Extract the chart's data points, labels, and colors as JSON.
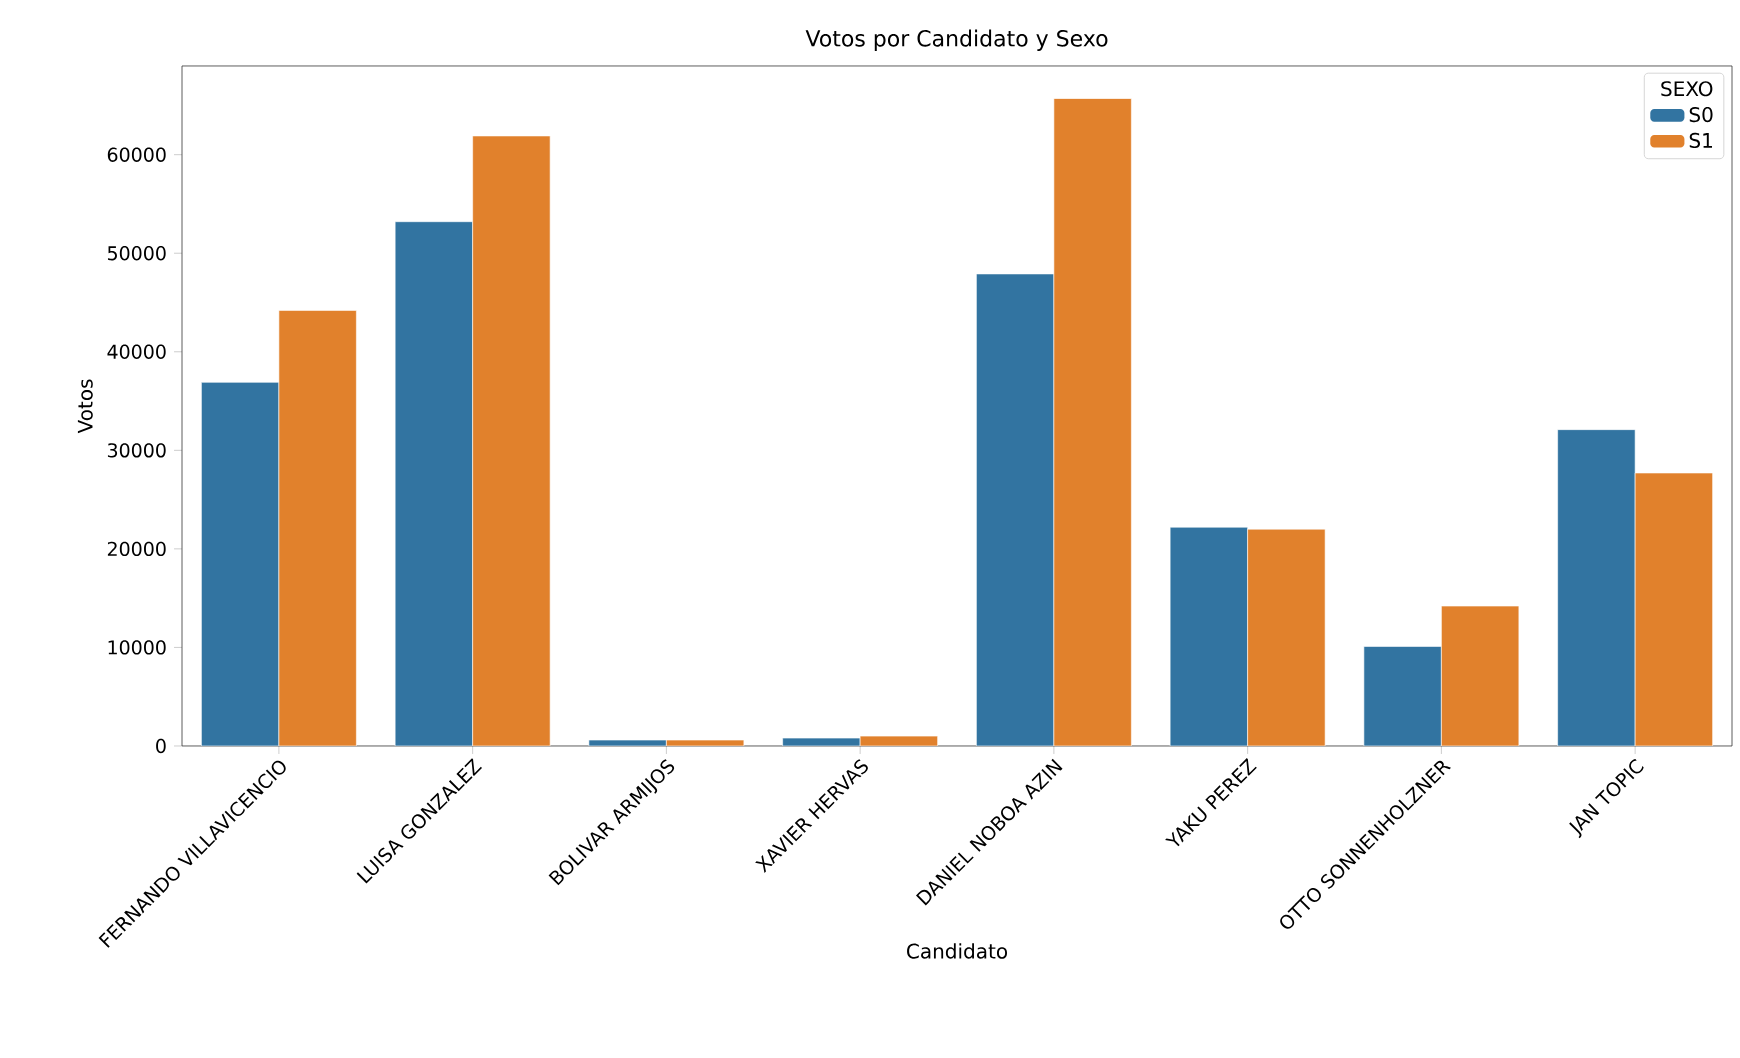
{
  "chart_data": {
    "type": "bar",
    "title": "Votos por Candidato y Sexo",
    "xlabel": "Candidato",
    "ylabel": "Votos",
    "legend_title": "SEXO",
    "categories": [
      "FERNANDO VILLAVICENCIO",
      "LUISA GONZALEZ",
      "BOLIVAR ARMIJOS",
      "XAVIER HERVAS",
      "DANIEL NOBOA AZIN",
      "YAKU PEREZ",
      "OTTO SONNENHOLZNER",
      "JAN TOPIC"
    ],
    "series": [
      {
        "name": "S0",
        "color": "#3274a1",
        "values": [
          36900,
          53200,
          600,
          800,
          47900,
          22200,
          10100,
          32100
        ]
      },
      {
        "name": "S1",
        "color": "#e1812c",
        "values": [
          44200,
          61900,
          600,
          1000,
          65700,
          22000,
          14200,
          27700
        ]
      }
    ],
    "ylim": [
      0,
      69000
    ],
    "yticks": [
      0,
      10000,
      20000,
      30000,
      40000,
      50000,
      60000
    ],
    "grid": false,
    "legend": "top right"
  }
}
